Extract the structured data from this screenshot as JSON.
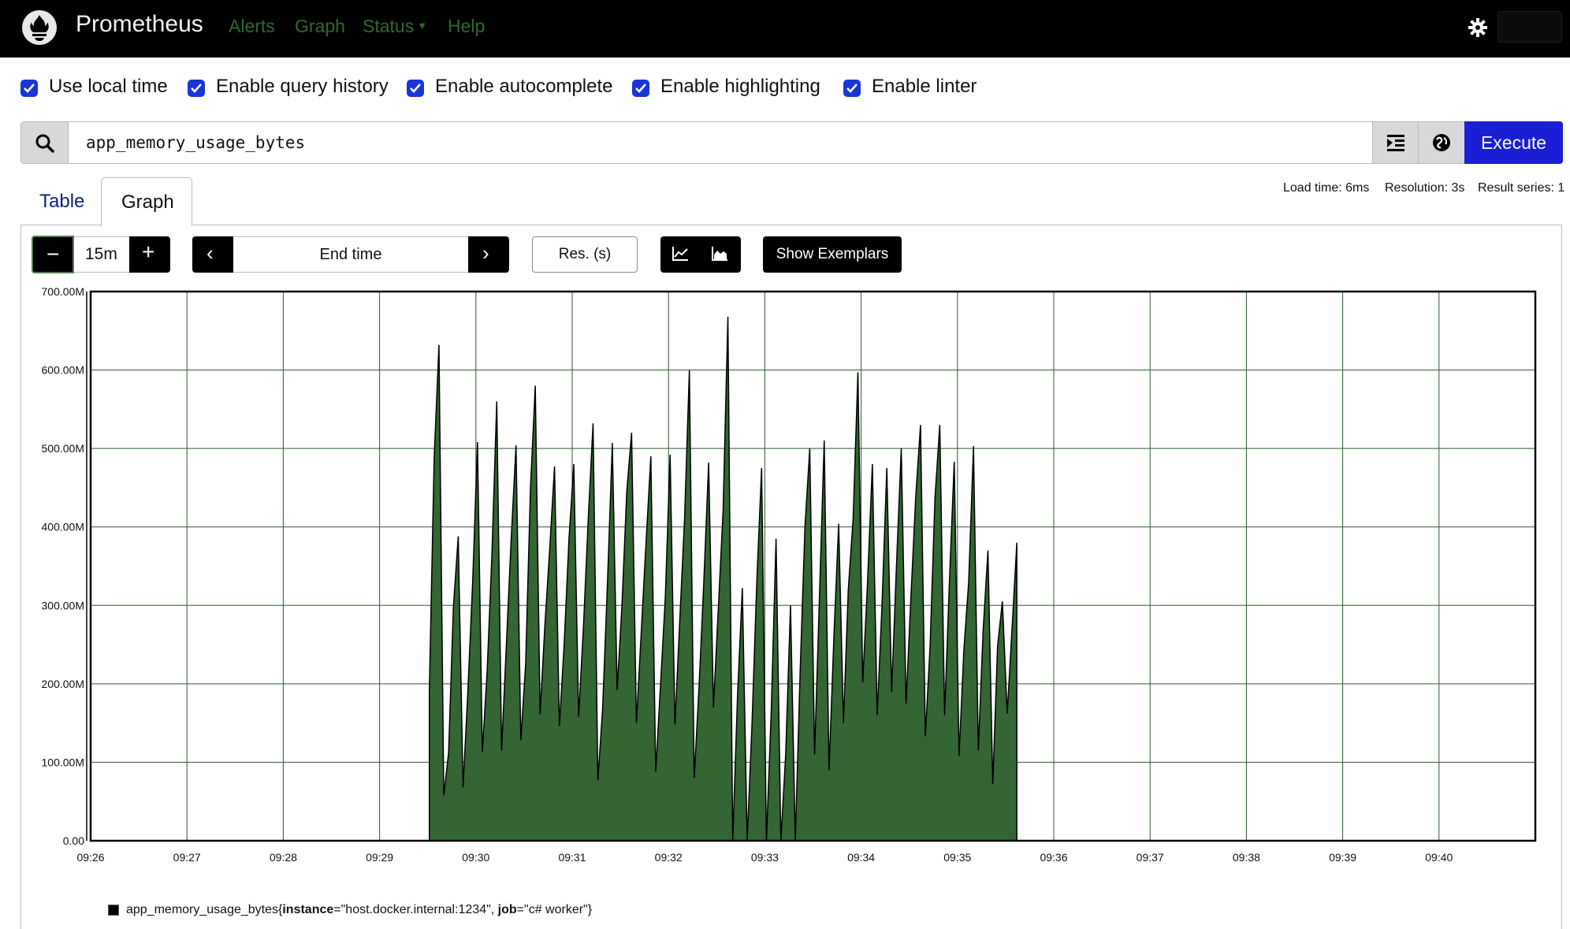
{
  "navbar": {
    "brand": "Prometheus",
    "links": [
      "Alerts",
      "Graph",
      "Status",
      "Help"
    ],
    "theme_icon": "gear-icon",
    "colors": {
      "background": "#000000",
      "link": "#2e6a2e"
    }
  },
  "options": [
    {
      "label": "Use local time",
      "checked": true
    },
    {
      "label": "Enable query history",
      "checked": true
    },
    {
      "label": "Enable autocomplete",
      "checked": true
    },
    {
      "label": "Enable highlighting",
      "checked": true
    },
    {
      "label": "Enable linter",
      "checked": true
    }
  ],
  "query": {
    "expression": "app_memory_usage_bytes",
    "execute_label": "Execute",
    "execute_color": "#1a1ed4",
    "icons": [
      "search-icon",
      "format-icon",
      "metrics-explorer-icon"
    ]
  },
  "tabs": {
    "table": "Table",
    "graph": "Graph",
    "active": "Graph"
  },
  "stats": {
    "load_time": "Load time: 6ms",
    "resolution": "Resolution: 3s",
    "result_series": "Result series: 1"
  },
  "controls": {
    "range_minus": "−",
    "range": "15m",
    "range_plus": "+",
    "prev": "‹",
    "end_time_placeholder": "End time",
    "next": "›",
    "resolution_placeholder": "Res. (s)",
    "show_exemplars": "Show Exemplars"
  },
  "chart_data": {
    "type": "area",
    "area_color": "#336633",
    "x_ticks": [
      "09:26",
      "09:27",
      "09:28",
      "09:29",
      "09:30",
      "09:31",
      "09:32",
      "09:33",
      "09:34",
      "09:35",
      "09:36",
      "09:37",
      "09:38",
      "09:39",
      "09:40"
    ],
    "y_ticks": [
      "0.00",
      "100.00M",
      "200.00M",
      "300.00M",
      "400.00M",
      "500.00M",
      "600.00M",
      "700.00M"
    ],
    "ylim": [
      0,
      700
    ],
    "y_unit": "M",
    "xlim": [
      "09:26",
      "09:41"
    ],
    "grid": true,
    "series": [
      {
        "name": "app_memory_usage_bytes{instance=\"host.docker.internal:1234\", job=\"c# worker\"}",
        "points": [
          [
            "09:29:31",
            190
          ],
          [
            "09:29:34",
            487
          ],
          [
            "09:29:37",
            632
          ],
          [
            "09:29:40",
            58
          ],
          [
            "09:29:43",
            112
          ],
          [
            "09:29:46",
            298
          ],
          [
            "09:29:49",
            388
          ],
          [
            "09:29:52",
            68
          ],
          [
            "09:29:55",
            190
          ],
          [
            "09:29:58",
            330
          ],
          [
            "09:30:01",
            508
          ],
          [
            "09:30:04",
            113
          ],
          [
            "09:30:07",
            215
          ],
          [
            "09:30:10",
            365
          ],
          [
            "09:30:13",
            560
          ],
          [
            "09:30:16",
            115
          ],
          [
            "09:30:19",
            250
          ],
          [
            "09:30:22",
            385
          ],
          [
            "09:30:25",
            504
          ],
          [
            "09:30:28",
            128
          ],
          [
            "09:30:31",
            225
          ],
          [
            "09:30:34",
            449
          ],
          [
            "09:30:37",
            580
          ],
          [
            "09:30:40",
            161
          ],
          [
            "09:30:43",
            275
          ],
          [
            "09:30:46",
            372
          ],
          [
            "09:30:49",
            477
          ],
          [
            "09:30:52",
            146
          ],
          [
            "09:30:55",
            250
          ],
          [
            "09:30:58",
            385
          ],
          [
            "09:31:01",
            480
          ],
          [
            "09:31:04",
            158
          ],
          [
            "09:31:07",
            272
          ],
          [
            "09:31:10",
            410
          ],
          [
            "09:31:13",
            532
          ],
          [
            "09:31:16",
            77
          ],
          [
            "09:31:19",
            170
          ],
          [
            "09:31:22",
            330
          ],
          [
            "09:31:25",
            507
          ],
          [
            "09:31:28",
            192
          ],
          [
            "09:31:31",
            300
          ],
          [
            "09:31:34",
            445
          ],
          [
            "09:31:37",
            520
          ],
          [
            "09:31:40",
            150
          ],
          [
            "09:31:43",
            265
          ],
          [
            "09:31:46",
            380
          ],
          [
            "09:31:49",
            490
          ],
          [
            "09:31:52",
            88
          ],
          [
            "09:31:55",
            197
          ],
          [
            "09:31:58",
            310
          ],
          [
            "09:32:01",
            492
          ],
          [
            "09:32:04",
            148
          ],
          [
            "09:32:07",
            280
          ],
          [
            "09:32:10",
            410
          ],
          [
            "09:32:13",
            600
          ],
          [
            "09:32:16",
            80
          ],
          [
            "09:32:19",
            195
          ],
          [
            "09:32:22",
            330
          ],
          [
            "09:32:25",
            482
          ],
          [
            "09:32:28",
            170
          ],
          [
            "09:32:31",
            295
          ],
          [
            "09:32:34",
            420
          ],
          [
            "09:32:37",
            668
          ],
          [
            "09:32:40",
            0
          ],
          [
            "09:32:43",
            185
          ],
          [
            "09:32:46",
            322
          ],
          [
            "09:32:49",
            0
          ],
          [
            "09:32:52",
            148
          ],
          [
            "09:32:55",
            330
          ],
          [
            "09:32:58",
            475
          ],
          [
            "09:33:01",
            0
          ],
          [
            "09:33:04",
            165
          ],
          [
            "09:33:07",
            385
          ],
          [
            "09:33:10",
            0
          ],
          [
            "09:33:13",
            110
          ],
          [
            "09:33:16",
            300
          ],
          [
            "09:33:19",
            0
          ],
          [
            "09:33:22",
            215
          ],
          [
            "09:33:25",
            400
          ],
          [
            "09:33:28",
            500
          ],
          [
            "09:33:31",
            110
          ],
          [
            "09:33:34",
            308
          ],
          [
            "09:33:37",
            510
          ],
          [
            "09:33:40",
            90
          ],
          [
            "09:33:43",
            258
          ],
          [
            "09:33:46",
            404
          ],
          [
            "09:33:49",
            150
          ],
          [
            "09:33:52",
            320
          ],
          [
            "09:33:55",
            410
          ],
          [
            "09:33:58",
            597
          ],
          [
            "09:34:01",
            202
          ],
          [
            "09:34:04",
            330
          ],
          [
            "09:34:07",
            480
          ],
          [
            "09:34:10",
            160
          ],
          [
            "09:34:13",
            300
          ],
          [
            "09:34:16",
            475
          ],
          [
            "09:34:19",
            190
          ],
          [
            "09:34:22",
            350
          ],
          [
            "09:34:25",
            500
          ],
          [
            "09:34:28",
            175
          ],
          [
            "09:34:31",
            310
          ],
          [
            "09:34:34",
            438
          ],
          [
            "09:34:37",
            530
          ],
          [
            "09:34:40",
            133
          ],
          [
            "09:34:43",
            250
          ],
          [
            "09:34:46",
            437
          ],
          [
            "09:34:49",
            530
          ],
          [
            "09:34:52",
            160
          ],
          [
            "09:34:55",
            330
          ],
          [
            "09:34:58",
            483
          ],
          [
            "09:35:01",
            108
          ],
          [
            "09:35:04",
            243
          ],
          [
            "09:35:07",
            330
          ],
          [
            "09:35:10",
            503
          ],
          [
            "09:35:13",
            115
          ],
          [
            "09:35:16",
            268
          ],
          [
            "09:35:19",
            370
          ],
          [
            "09:35:22",
            72
          ],
          [
            "09:35:25",
            248
          ],
          [
            "09:35:28",
            305
          ],
          [
            "09:35:31",
            162
          ],
          [
            "09:35:34",
            270
          ]
        ],
        "time_offset_seconds": [
          0
        ]
      }
    ],
    "legend": {
      "metric": "app_memory_usage_bytes",
      "labels": [
        {
          "name": "instance",
          "value": "\"host.docker.internal:1234\""
        },
        {
          "name": "job",
          "value": "\"c# worker\""
        }
      ]
    }
  }
}
